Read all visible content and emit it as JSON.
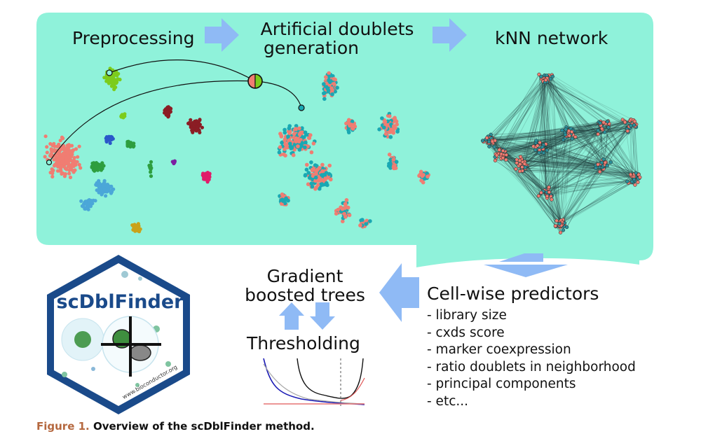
{
  "colors": {
    "panel": "#8ff2da",
    "arrow": "#8fbaf5",
    "doublet": "#f07d72",
    "singlet": "#19a8b3",
    "network_node": "#2b8f9a",
    "logo_fill": "#ffffff",
    "logo_border": "#1a4a8a",
    "caption_figure": "#b5683f"
  },
  "steps": {
    "preprocessing": "Preprocessing",
    "doublets_line1": "Artificial doublets",
    "doublets_line2": "generation",
    "knn": "kNN network",
    "gbt_line1": "Gradient",
    "gbt_line2": "boosted trees",
    "thresholding": "Thresholding"
  },
  "predictors": {
    "title": "Cell-wise predictors",
    "items": [
      "- library size",
      "- cxds score",
      "- marker coexpression",
      "- ratio doublets in neighborhood",
      "- principal components",
      "- etc..."
    ]
  },
  "logo": {
    "name": "scDblFinder",
    "url": "www.bioconductor.org",
    "icon": "cell-crosshair-icon"
  },
  "caption": {
    "figure_label": "Figure 1.",
    "text": " Overview of the scDblFinder method."
  }
}
